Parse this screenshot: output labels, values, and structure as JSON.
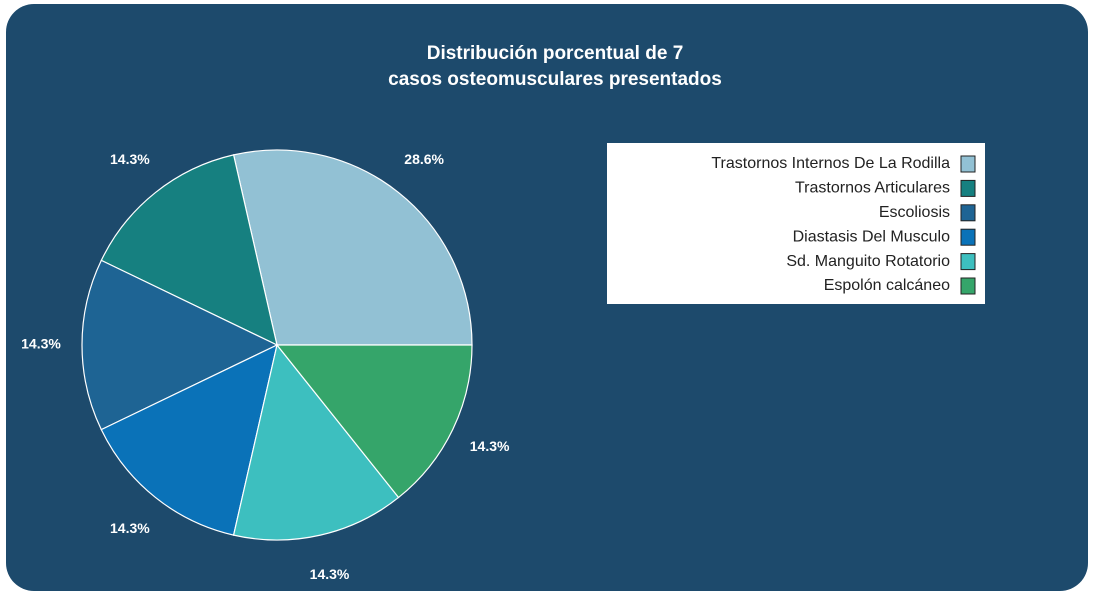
{
  "chart_data": {
    "type": "pie",
    "title": [
      "Distribución porcentual de 7",
      "casos osteomusculares presentados"
    ],
    "categories": [
      "Trastornos Internos De La Rodilla",
      "Trastornos Articulares",
      "Escoliosis",
      "Diastasis Del Musculo",
      "Sd. Manguito Rotatorio",
      "Espolón calcáneo"
    ],
    "values": [
      28.6,
      14.3,
      14.3,
      14.3,
      14.3,
      14.3
    ],
    "value_labels": [
      "28.6%",
      "14.3%",
      "14.3%",
      "14.3%",
      "14.3%",
      "14.3%"
    ],
    "colors": [
      "#92c1d4",
      "#168080",
      "#1e6494",
      "#0a72b8",
      "#3dbfbf",
      "#35a56a"
    ],
    "legend": "top-right"
  }
}
